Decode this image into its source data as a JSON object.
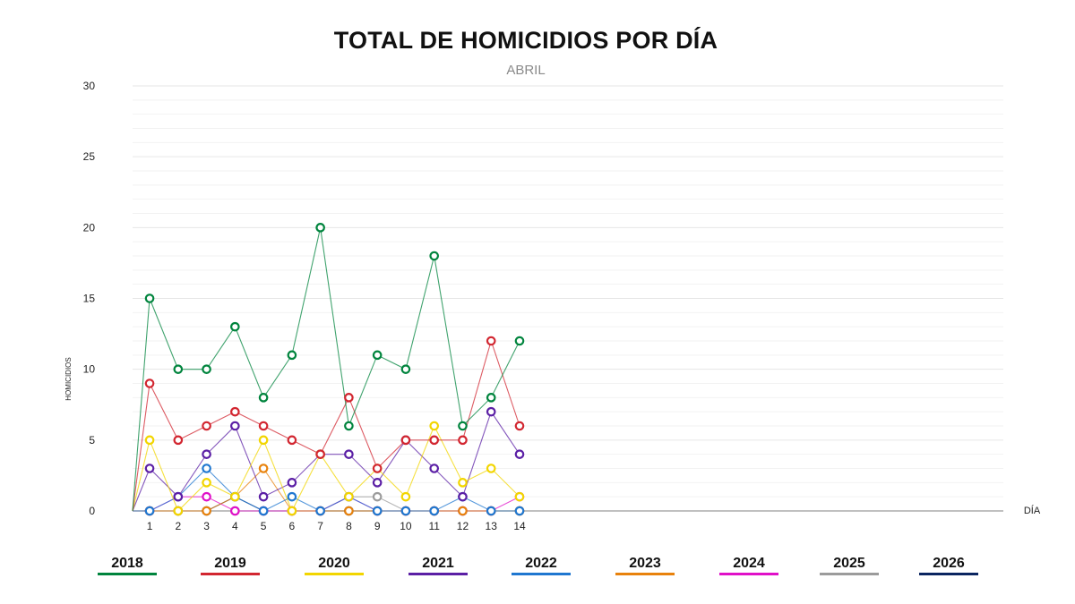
{
  "chart_data": {
    "type": "line",
    "title": "TOTAL DE HOMICIDIOS POR DÍA",
    "subtitle": "ABRIL",
    "xlabel": "DÍA",
    "ylabel": "HOMICIDIOS",
    "ylim": [
      0,
      30
    ],
    "yticks": [
      "0",
      "5",
      "10",
      "15",
      "20",
      "25",
      "30"
    ],
    "xlim": [
      0.4,
      31
    ],
    "x": [
      "1",
      "2",
      "3",
      "4",
      "5",
      "6",
      "7",
      "8",
      "9",
      "10",
      "11",
      "12",
      "13",
      "14"
    ],
    "grid": true,
    "legend_position": "bottom",
    "series": [
      {
        "name": "2018",
        "color": "#00843d",
        "values": [
          15,
          10,
          10,
          13,
          8,
          11,
          20,
          6,
          11,
          10,
          18,
          6,
          8,
          12
        ]
      },
      {
        "name": "2019",
        "color": "#d22630",
        "values": [
          9,
          5,
          6,
          7,
          6,
          5,
          4,
          8,
          3,
          5,
          5,
          5,
          12,
          6
        ]
      },
      {
        "name": "2020",
        "color": "#f2d500",
        "values": [
          5,
          0,
          2,
          1,
          5,
          0,
          4,
          1,
          3,
          1,
          6,
          2,
          3,
          1
        ]
      },
      {
        "name": "2021",
        "color": "#5b1fa5",
        "values": [
          3,
          1,
          4,
          6,
          1,
          2,
          4,
          4,
          2,
          5,
          3,
          1,
          7,
          4
        ]
      },
      {
        "name": "2022",
        "color": "#1f77d0",
        "values": [
          0,
          1,
          3,
          1,
          0,
          1,
          0,
          1,
          0,
          0,
          0,
          1,
          0,
          0
        ]
      },
      {
        "name": "2023",
        "color": "#e8820c",
        "values": [
          0,
          0,
          0,
          1,
          3,
          0,
          0,
          0,
          0,
          0,
          0,
          0,
          0,
          0
        ]
      },
      {
        "name": "2024",
        "color": "#e010c8",
        "values": [
          0,
          1,
          1,
          0,
          0,
          0,
          0,
          1,
          0,
          0,
          0,
          0,
          0,
          1
        ]
      },
      {
        "name": "2025",
        "color": "#9b9b9b",
        "values": [
          0,
          0,
          0,
          0,
          0,
          0,
          0,
          1,
          1,
          0,
          0,
          0,
          0,
          0
        ]
      },
      {
        "name": "2026",
        "color": "#0b2560",
        "values": [
          0,
          0,
          0,
          1,
          0,
          0,
          0,
          0,
          0,
          0,
          0,
          0,
          0,
          0
        ]
      }
    ]
  }
}
